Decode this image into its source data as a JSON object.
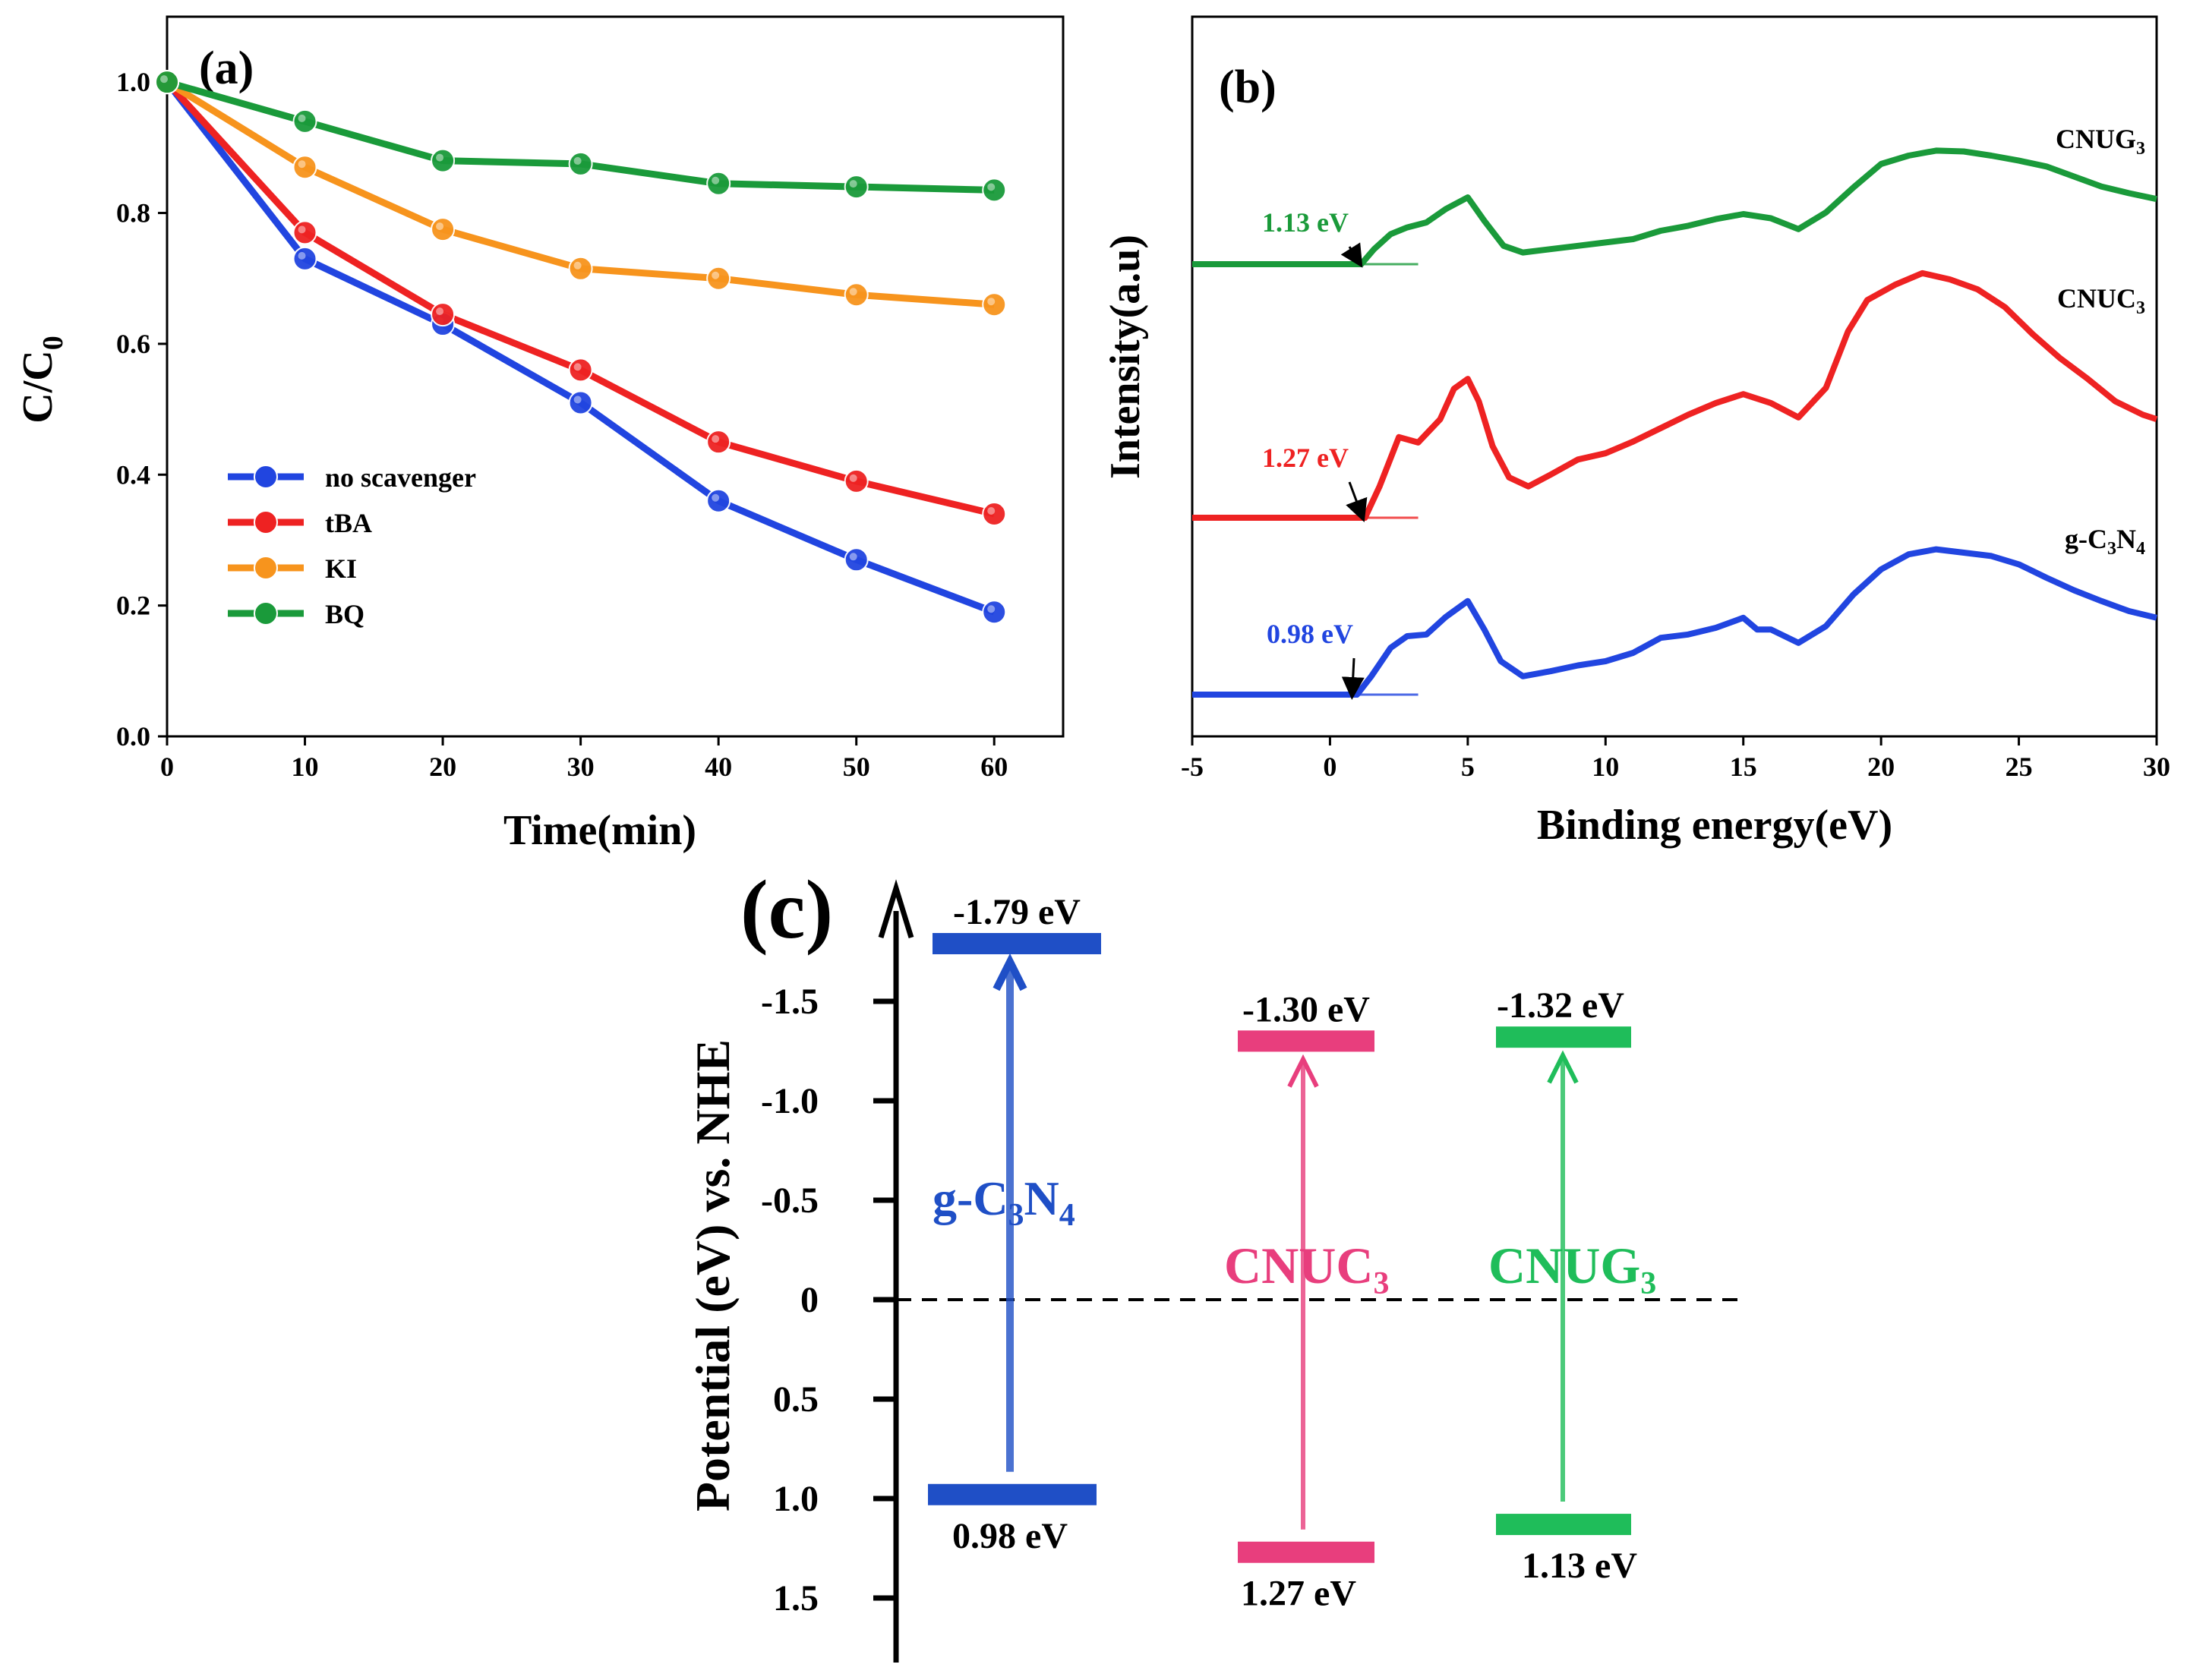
{
  "chart_data": [
    {
      "id": "a",
      "type": "line",
      "panel_label": "(a)",
      "title": "",
      "xlabel": "Time(min)",
      "ylabel_main": "C/C",
      "ylabel_sub": "0",
      "xlim": [
        0,
        65
      ],
      "ylim": [
        0,
        1.1
      ],
      "x_ticks": [
        "0",
        "10",
        "20",
        "30",
        "40",
        "50",
        "60"
      ],
      "y_ticks": [
        "0.0",
        "0.2",
        "0.4",
        "0.6",
        "0.8",
        "1.0"
      ],
      "x": [
        0,
        10,
        20,
        30,
        40,
        50,
        60
      ],
      "legend_position": "bottom-left",
      "series": [
        {
          "name": "no scavenger",
          "color": "#2145e0",
          "values": [
            1.0,
            0.73,
            0.63,
            0.51,
            0.36,
            0.27,
            0.19
          ]
        },
        {
          "name": "tBA",
          "color": "#ee2222",
          "values": [
            1.0,
            0.77,
            0.645,
            0.56,
            0.45,
            0.39,
            0.34
          ]
        },
        {
          "name": "KI",
          "color": "#f7941d",
          "values": [
            1.0,
            0.87,
            0.775,
            0.715,
            0.7,
            0.675,
            0.66
          ]
        },
        {
          "name": "BQ",
          "color": "#1a9a3a",
          "values": [
            1.0,
            0.94,
            0.88,
            0.875,
            0.845,
            0.84,
            0.835
          ]
        }
      ]
    },
    {
      "id": "b",
      "type": "line",
      "panel_label": "(b)",
      "title": "",
      "xlabel": "Binding energy(eV)",
      "ylabel": "Intensity(a.u)",
      "xlim": [
        -5,
        30
      ],
      "x_ticks": [
        "-5",
        "0",
        "5",
        "10",
        "15",
        "20",
        "25",
        "30"
      ],
      "y_ticks_shown": false,
      "series": [
        {
          "name_main": "CNUG",
          "name_sub": "3",
          "color": "#1a9a3a",
          "onset_label": "1.13 eV",
          "onset": 1.13,
          "x": [
            -5,
            1.13,
            1.6,
            2.2,
            2.8,
            3.5,
            4.2,
            5,
            5.6,
            6.3,
            7,
            8,
            9,
            10,
            11,
            12,
            13,
            14,
            15,
            16,
            17,
            18,
            19,
            20,
            21,
            22,
            23,
            24,
            25,
            26,
            27,
            28,
            29,
            30
          ],
          "values": [
            0,
            0,
            0.18,
            0.36,
            0.44,
            0.5,
            0.66,
            0.8,
            0.52,
            0.22,
            0.14,
            0.18,
            0.22,
            0.26,
            0.3,
            0.4,
            0.46,
            0.54,
            0.6,
            0.55,
            0.42,
            0.62,
            0.92,
            1.2,
            1.3,
            1.36,
            1.35,
            1.3,
            1.24,
            1.17,
            1.05,
            0.93,
            0.85,
            0.78
          ]
        },
        {
          "name_main": "CNUC",
          "name_sub": "3",
          "color": "#ee2222",
          "onset_label": "1.27 eV",
          "onset": 1.27,
          "x": [
            -5,
            1.27,
            1.8,
            2.5,
            3.2,
            4,
            4.5,
            5,
            5.4,
            5.9,
            6.5,
            7.2,
            8,
            9,
            10,
            11,
            12,
            13,
            14,
            15,
            16,
            17,
            18,
            18.8,
            19.5,
            20.5,
            21.5,
            22.5,
            23.5,
            24.5,
            25.5,
            26.5,
            27.5,
            28.5,
            29.5,
            30
          ],
          "values": [
            0,
            0,
            0.35,
            0.9,
            0.84,
            1.1,
            1.44,
            1.55,
            1.3,
            0.8,
            0.45,
            0.35,
            0.48,
            0.65,
            0.72,
            0.85,
            1.0,
            1.15,
            1.28,
            1.38,
            1.28,
            1.12,
            1.45,
            2.08,
            2.43,
            2.6,
            2.73,
            2.66,
            2.55,
            2.35,
            2.05,
            1.78,
            1.55,
            1.3,
            1.15,
            1.1
          ]
        },
        {
          "name_main": "g-C",
          "name_sub1": "3",
          "name_mid": "N",
          "name_sub2": "4",
          "color": "#2145e0",
          "onset_label": "0.98 eV",
          "onset": 0.98,
          "x": [
            -5,
            0.98,
            1.5,
            2.2,
            2.8,
            3.5,
            4.2,
            5,
            5.6,
            6.2,
            7,
            8,
            9,
            10,
            11,
            12,
            13,
            14,
            15,
            15.5,
            16,
            17,
            18,
            19,
            20,
            21,
            22,
            23,
            24,
            25,
            26,
            27,
            28,
            29,
            30
          ],
          "values": [
            0,
            0,
            0.22,
            0.56,
            0.7,
            0.72,
            0.93,
            1.12,
            0.78,
            0.4,
            0.22,
            0.28,
            0.35,
            0.4,
            0.5,
            0.68,
            0.72,
            0.8,
            0.92,
            0.78,
            0.78,
            0.62,
            0.82,
            1.2,
            1.5,
            1.68,
            1.74,
            1.7,
            1.66,
            1.56,
            1.4,
            1.25,
            1.12,
            1.0,
            0.92
          ]
        }
      ]
    },
    {
      "id": "c",
      "type": "band-diagram",
      "panel_label": "(c)",
      "ylabel": "Potential (eV) vs. NHE",
      "ylim": [
        1.7,
        -2.05
      ],
      "y_ticks": [
        {
          "value": -1.5,
          "label": "-1.5"
        },
        {
          "value": -1.0,
          "label": "-1.0"
        },
        {
          "value": -0.5,
          "label": "-0.5"
        },
        {
          "value": 0,
          "label": "0"
        },
        {
          "value": 0.5,
          "label": "0.5"
        },
        {
          "value": 1.0,
          "label": "1.0"
        },
        {
          "value": 1.5,
          "label": "1.5"
        }
      ],
      "materials": [
        {
          "name_main": "g-C",
          "name_sub1": "3",
          "name_mid": "N",
          "name_sub2": "4",
          "color": "#1f4fc6",
          "cb": -1.79,
          "vb": 0.98,
          "cb_label": "-1.79 eV",
          "vb_label": "0.98 eV"
        },
        {
          "name_main": "CNUC",
          "name_sub": "3",
          "color": "#e83e7d",
          "cb": -1.3,
          "vb": 1.27,
          "cb_label": "-1.30 eV",
          "vb_label": "1.27 eV"
        },
        {
          "name_main": "CNUG",
          "name_sub": "3",
          "color": "#1fbd5a",
          "cb": -1.32,
          "vb": 1.13,
          "cb_label": "-1.32 eV",
          "vb_label": "1.13 eV"
        }
      ]
    }
  ]
}
